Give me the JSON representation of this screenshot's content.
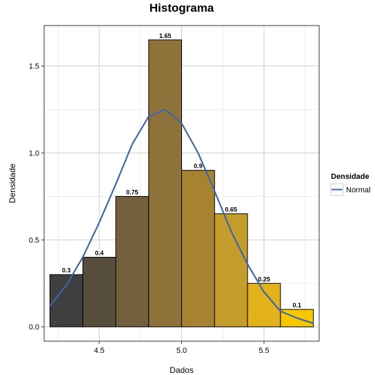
{
  "chart_data": {
    "type": "bar",
    "title": "Histograma",
    "xlabel": "Dados",
    "ylabel": "Densidade",
    "bins": [
      {
        "x0": 4.2,
        "x1": 4.4,
        "value": 0.3,
        "label": "0.3",
        "color": "#3f3f3f"
      },
      {
        "x0": 4.4,
        "x1": 4.6,
        "value": 0.4,
        "label": "0.4",
        "color": "#574d3c"
      },
      {
        "x0": 4.6,
        "x1": 4.8,
        "value": 0.75,
        "label": "0.75",
        "color": "#735f3b"
      },
      {
        "x0": 4.8,
        "x1": 5.0,
        "value": 1.65,
        "label": "1.65",
        "color": "#8e723a"
      },
      {
        "x0": 5.0,
        "x1": 5.2,
        "value": 0.9,
        "label": "0.9",
        "color": "#a78331"
      },
      {
        "x0": 5.2,
        "x1": 5.4,
        "value": 0.65,
        "label": "0.65",
        "color": "#c59d2c"
      },
      {
        "x0": 5.4,
        "x1": 5.6,
        "value": 0.25,
        "label": "0.25",
        "color": "#e1b21c"
      },
      {
        "x0": 5.6,
        "x1": 5.8,
        "value": 0.1,
        "label": "0.1",
        "color": "#f7c800"
      }
    ],
    "series": [
      {
        "name": "Normal",
        "color": "#3e66a9",
        "x": [
          4.2,
          4.3,
          4.4,
          4.5,
          4.6,
          4.7,
          4.8,
          4.9,
          5.0,
          5.1,
          5.2,
          5.3,
          5.4,
          5.5,
          5.6,
          5.7,
          5.8
        ],
        "y": [
          0.12,
          0.24,
          0.4,
          0.6,
          0.82,
          1.05,
          1.21,
          1.25,
          1.17,
          1.0,
          0.78,
          0.55,
          0.36,
          0.2,
          0.09,
          0.05,
          0.02
        ]
      }
    ],
    "xlim": [
      4.165,
      5.835
    ],
    "ylim": [
      -0.0825,
      1.7325
    ],
    "x_ticks": [
      {
        "value": 4.5,
        "label": "4.5"
      },
      {
        "value": 5.0,
        "label": "5.0"
      },
      {
        "value": 5.5,
        "label": "5.5"
      }
    ],
    "y_ticks": [
      {
        "value": 0.0,
        "label": "0.0"
      },
      {
        "value": 0.5,
        "label": "0.5"
      },
      {
        "value": 1.0,
        "label": "1.0"
      },
      {
        "value": 1.5,
        "label": "1.5"
      }
    ],
    "grid": true,
    "legend": {
      "title": "Densidade",
      "position": "right",
      "entries": [
        "Normal"
      ]
    }
  }
}
